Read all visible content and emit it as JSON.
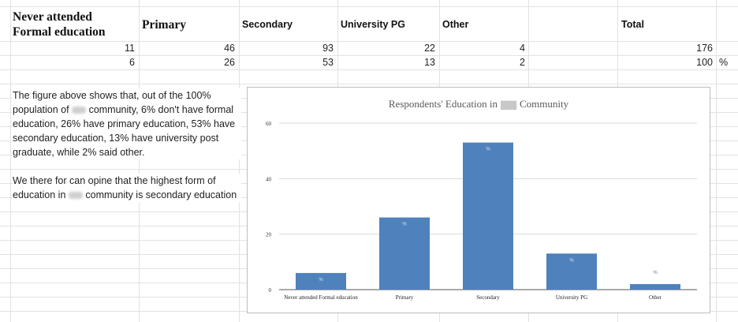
{
  "table": {
    "headers": [
      "Never attended Formal education",
      "Primary",
      "Secondary",
      "University PG",
      "Other",
      "Total"
    ],
    "header_line1": "Never attended",
    "header_line2": "Formal education",
    "counts": [
      "11",
      "46",
      "93",
      "22",
      "4",
      "176"
    ],
    "percents": [
      "6",
      "26",
      "53",
      "13",
      "2",
      "100"
    ],
    "percent_sign": "%"
  },
  "text": {
    "p1_a": "The figure above shows that, out of the 100% population of",
    "p1_b": "community, 6% don't have formal education, 26% have primary education, 53% have secondary education, 13% have university post graduate, while 2% said other.",
    "p2_a": "We there for can opine that the highest form of education in",
    "p2_b": "community is  secondary education"
  },
  "chart_data": {
    "type": "bar",
    "title_prefix": "Respondents' Education in",
    "title_suffix": "Community",
    "categories": [
      "Never attended Formal education",
      "Primary",
      "Secondary",
      "University PG",
      "Other"
    ],
    "values": [
      6,
      26,
      53,
      13,
      2
    ],
    "data_label": "%",
    "ylim": [
      0,
      60
    ],
    "yticks": [
      0,
      20,
      40,
      60
    ],
    "grid": true,
    "bar_color": "#4f81bd"
  }
}
